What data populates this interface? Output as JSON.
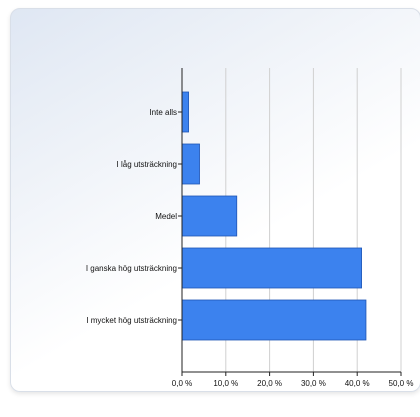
{
  "chart_data": {
    "type": "bar",
    "orientation": "horizontal",
    "categories": [
      "Inte alls",
      "I låg utsträckning",
      "Medel",
      "I ganska hög utsträckning",
      "I mycket hög utsträckning"
    ],
    "values": [
      1.5,
      4.0,
      12.5,
      41.0,
      42.0
    ],
    "xlim": [
      0,
      50
    ],
    "xticks": [
      "0,0 %",
      "10,0 %",
      "20,0 %",
      "30,0 %",
      "40,0 %",
      "50,0 %"
    ],
    "grid": true,
    "colors": {
      "bar": "#3c82ee",
      "bar_edge": "#1f55b5",
      "grid": "#d0d0d0"
    }
  }
}
